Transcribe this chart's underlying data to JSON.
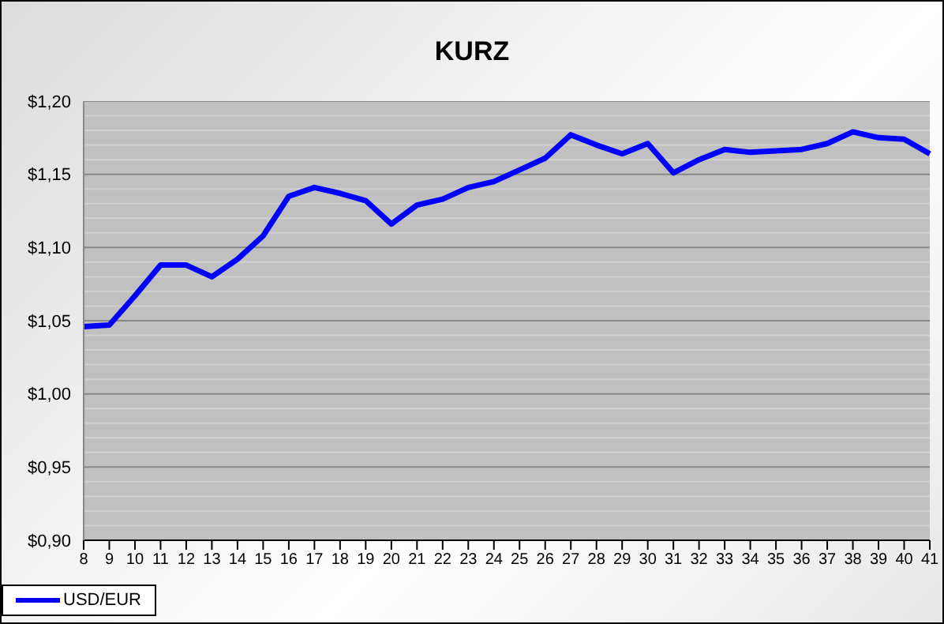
{
  "chart_data": {
    "type": "line",
    "title": "KURZ",
    "categories": [
      "8",
      "9",
      "10",
      "11",
      "12",
      "13",
      "14",
      "15",
      "16",
      "17",
      "18",
      "19",
      "20",
      "21",
      "22",
      "23",
      "24",
      "25",
      "26",
      "27",
      "28",
      "29",
      "30",
      "31",
      "32",
      "33",
      "34",
      "35",
      "36",
      "37",
      "38",
      "39",
      "40",
      "41"
    ],
    "series": [
      {
        "name": "USD/EUR",
        "color": "#0000ff",
        "values": [
          1.046,
          1.047,
          1.067,
          1.088,
          1.088,
          1.08,
          1.092,
          1.108,
          1.135,
          1.141,
          1.137,
          1.132,
          1.116,
          1.129,
          1.133,
          1.141,
          1.145,
          1.153,
          1.161,
          1.177,
          1.17,
          1.164,
          1.171,
          1.151,
          1.16,
          1.167,
          1.165,
          1.166,
          1.167,
          1.171,
          1.179,
          1.175,
          1.174,
          1.164
        ]
      }
    ],
    "ylim": [
      0.9,
      1.2
    ],
    "yticks": [
      {
        "value": 0.9,
        "label": "$0,90"
      },
      {
        "value": 0.91,
        "label": null
      },
      {
        "value": 0.92,
        "label": null
      },
      {
        "value": 0.93,
        "label": null
      },
      {
        "value": 0.94,
        "label": null
      },
      {
        "value": 0.95,
        "label": "$0,95"
      },
      {
        "value": 0.96,
        "label": null
      },
      {
        "value": 0.97,
        "label": null
      },
      {
        "value": 0.98,
        "label": null
      },
      {
        "value": 0.99,
        "label": null
      },
      {
        "value": 1.0,
        "label": "$1,00"
      },
      {
        "value": 1.01,
        "label": null
      },
      {
        "value": 1.02,
        "label": null
      },
      {
        "value": 1.03,
        "label": null
      },
      {
        "value": 1.04,
        "label": null
      },
      {
        "value": 1.05,
        "label": "$1,05"
      },
      {
        "value": 1.06,
        "label": null
      },
      {
        "value": 1.07,
        "label": null
      },
      {
        "value": 1.08,
        "label": null
      },
      {
        "value": 1.09,
        "label": null
      },
      {
        "value": 1.1,
        "label": "$1,10"
      },
      {
        "value": 1.11,
        "label": null
      },
      {
        "value": 1.12,
        "label": null
      },
      {
        "value": 1.13,
        "label": null
      },
      {
        "value": 1.14,
        "label": null
      },
      {
        "value": 1.15,
        "label": "$1,15"
      },
      {
        "value": 1.16,
        "label": null
      },
      {
        "value": 1.17,
        "label": null
      },
      {
        "value": 1.18,
        "label": null
      },
      {
        "value": 1.19,
        "label": null
      },
      {
        "value": 1.2,
        "label": "$1,20"
      }
    ],
    "grid": "y",
    "legend": "bottom",
    "marker": "none",
    "line_style": "solid"
  }
}
